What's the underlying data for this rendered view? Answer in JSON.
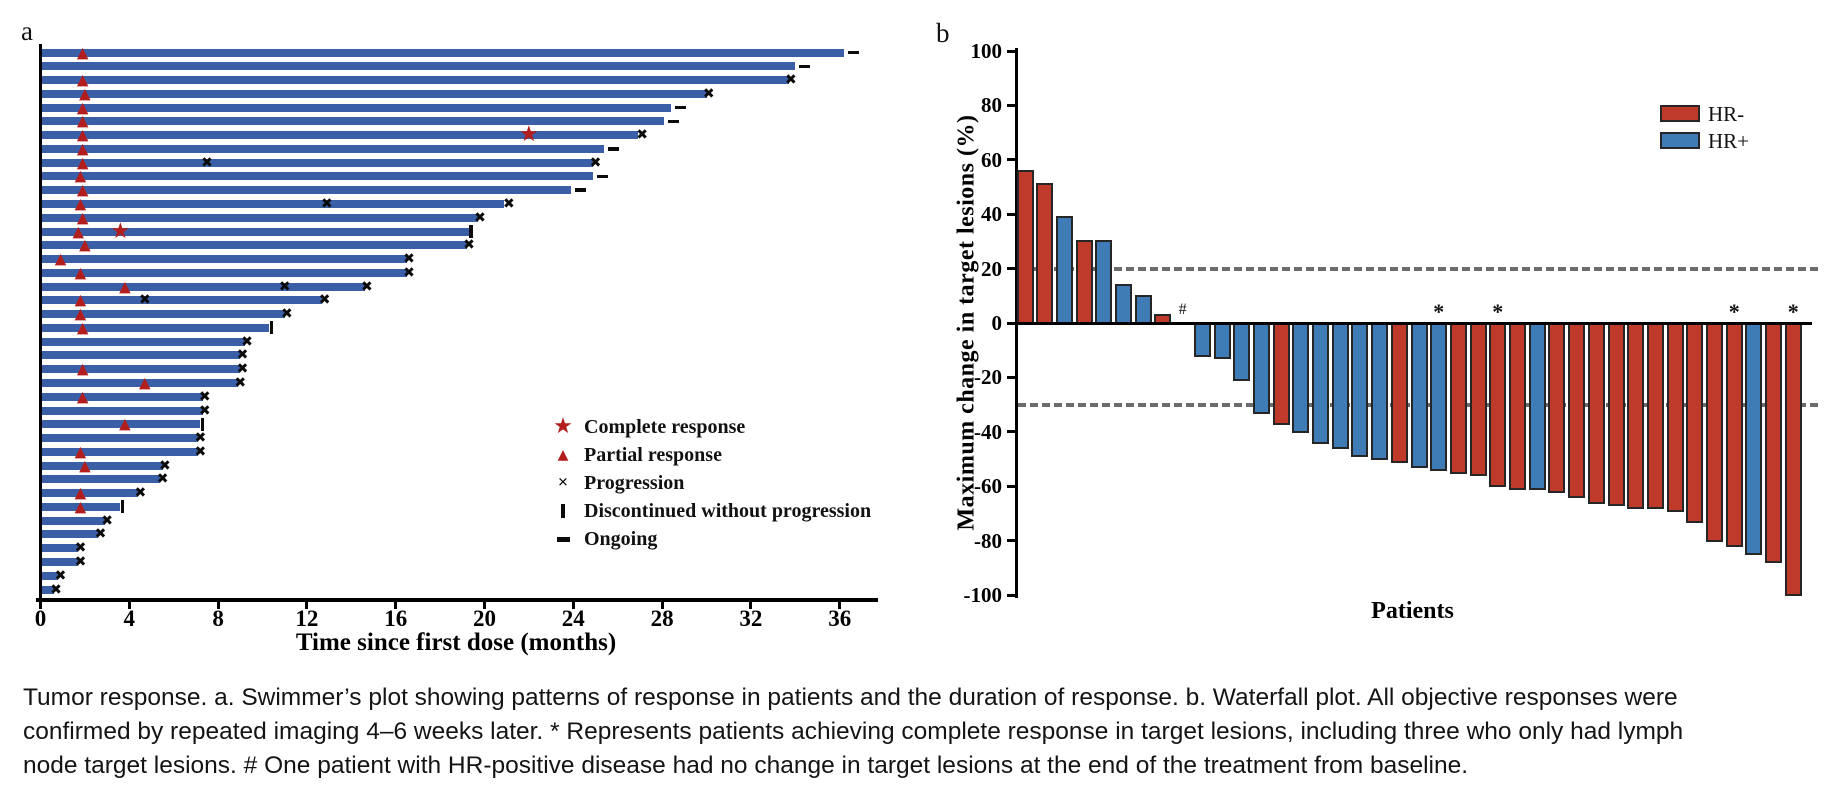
{
  "figure": {
    "panel_a_label": "a",
    "panel_b_label": "b"
  },
  "caption": {
    "lines": [
      "Tumor response. a. Swimmer’s plot showing patterns of response in patients and the duration of response. b. Waterfall plot. All objective responses were",
      "confirmed by repeated imaging 4–6 weeks later. * Represents patients achieving complete response in target lesions, including three who only had lymph",
      "node target lesions. # One patient with HR-positive disease had no change in target lesions at the end of the treatment from baseline."
    ]
  },
  "chart_data": [
    {
      "id": "swimmer_plot",
      "type": "bar",
      "orientation": "horizontal_swimmer",
      "title": "",
      "xlabel": "Time since first dose (months)",
      "ylabel": "",
      "xlim": [
        0,
        37.5
      ],
      "xticks": [
        0,
        4,
        8,
        12,
        16,
        20,
        24,
        28,
        32,
        36
      ],
      "grid": false,
      "bar_color": "#3a5fa7",
      "marker_red": "#b21d1d",
      "marker_black": "#0b0b0b",
      "legend_position": "right-middle",
      "legend": [
        {
          "symbol": "star",
          "label": "Complete response"
        },
        {
          "symbol": "triangle",
          "label": "Partial response"
        },
        {
          "symbol": "x",
          "label": "Progression"
        },
        {
          "symbol": "vbar",
          "label": "Discontinued without progression"
        },
        {
          "symbol": "dash",
          "label": "Ongoing"
        }
      ],
      "patients": [
        {
          "duration_months": 36.2,
          "markers": [
            {
              "type": "triangle",
              "month": 1.9
            },
            {
              "type": "dash",
              "month": 36.6
            }
          ]
        },
        {
          "duration_months": 34.0,
          "markers": [
            {
              "type": "dash",
              "month": 34.4
            }
          ]
        },
        {
          "duration_months": 33.7,
          "markers": [
            {
              "type": "triangle",
              "month": 1.9
            },
            {
              "type": "x",
              "month": 33.8
            }
          ]
        },
        {
          "duration_months": 30.0,
          "markers": [
            {
              "type": "triangle",
              "month": 2.0
            },
            {
              "type": "x",
              "month": 30.1
            }
          ]
        },
        {
          "duration_months": 28.4,
          "markers": [
            {
              "type": "triangle",
              "month": 1.9
            },
            {
              "type": "dash",
              "month": 28.8
            }
          ]
        },
        {
          "duration_months": 28.1,
          "markers": [
            {
              "type": "triangle",
              "month": 1.9
            },
            {
              "type": "dash",
              "month": 28.5
            }
          ]
        },
        {
          "duration_months": 26.9,
          "markers": [
            {
              "type": "triangle",
              "month": 1.9
            },
            {
              "type": "star",
              "month": 22.0
            },
            {
              "type": "x",
              "month": 27.1
            }
          ]
        },
        {
          "duration_months": 25.4,
          "markers": [
            {
              "type": "triangle",
              "month": 1.9
            },
            {
              "type": "dash",
              "month": 25.8
            }
          ]
        },
        {
          "duration_months": 24.9,
          "markers": [
            {
              "type": "triangle",
              "month": 1.9
            },
            {
              "type": "x",
              "month": 7.5
            },
            {
              "type": "x",
              "month": 25.0
            }
          ]
        },
        {
          "duration_months": 24.9,
          "markers": [
            {
              "type": "triangle",
              "month": 1.8
            },
            {
              "type": "dash",
              "month": 25.3
            }
          ]
        },
        {
          "duration_months": 23.9,
          "markers": [
            {
              "type": "triangle",
              "month": 1.9
            },
            {
              "type": "dash",
              "month": 24.3
            }
          ]
        },
        {
          "duration_months": 20.9,
          "markers": [
            {
              "type": "triangle",
              "month": 1.8
            },
            {
              "type": "x",
              "month": 12.9
            },
            {
              "type": "x",
              "month": 21.1
            }
          ]
        },
        {
          "duration_months": 19.7,
          "markers": [
            {
              "type": "triangle",
              "month": 1.9
            },
            {
              "type": "x",
              "month": 19.8
            }
          ]
        },
        {
          "duration_months": 19.3,
          "markers": [
            {
              "type": "triangle",
              "month": 1.7
            },
            {
              "type": "star",
              "month": 3.6
            },
            {
              "type": "vbar",
              "month": 19.4
            }
          ]
        },
        {
          "duration_months": 19.2,
          "markers": [
            {
              "type": "triangle",
              "month": 2.0
            },
            {
              "type": "x",
              "month": 19.3
            }
          ]
        },
        {
          "duration_months": 16.5,
          "markers": [
            {
              "type": "triangle",
              "month": 0.9
            },
            {
              "type": "x",
              "month": 16.6
            }
          ]
        },
        {
          "duration_months": 16.5,
          "markers": [
            {
              "type": "triangle",
              "month": 1.8
            },
            {
              "type": "x",
              "month": 16.6
            }
          ]
        },
        {
          "duration_months": 14.6,
          "markers": [
            {
              "type": "triangle",
              "month": 3.8
            },
            {
              "type": "x",
              "month": 11.0
            },
            {
              "type": "x",
              "month": 14.7
            }
          ]
        },
        {
          "duration_months": 12.7,
          "markers": [
            {
              "type": "triangle",
              "month": 1.8
            },
            {
              "type": "x",
              "month": 4.7
            },
            {
              "type": "x",
              "month": 12.8
            }
          ]
        },
        {
          "duration_months": 11.0,
          "markers": [
            {
              "type": "triangle",
              "month": 1.8
            },
            {
              "type": "x",
              "month": 11.1
            }
          ]
        },
        {
          "duration_months": 10.3,
          "markers": [
            {
              "type": "triangle",
              "month": 1.9
            },
            {
              "type": "vbar",
              "month": 10.4
            }
          ]
        },
        {
          "duration_months": 9.2,
          "markers": [
            {
              "type": "x",
              "month": 9.3
            }
          ]
        },
        {
          "duration_months": 9.0,
          "markers": [
            {
              "type": "x",
              "month": 9.1
            }
          ]
        },
        {
          "duration_months": 9.0,
          "markers": [
            {
              "type": "triangle",
              "month": 1.9
            },
            {
              "type": "x",
              "month": 9.1
            }
          ]
        },
        {
          "duration_months": 8.9,
          "markers": [
            {
              "type": "triangle",
              "month": 4.7
            },
            {
              "type": "x",
              "month": 9.0
            }
          ]
        },
        {
          "duration_months": 7.3,
          "markers": [
            {
              "type": "triangle",
              "month": 1.9
            },
            {
              "type": "x",
              "month": 7.4
            }
          ]
        },
        {
          "duration_months": 7.3,
          "markers": [
            {
              "type": "x",
              "month": 7.4
            }
          ]
        },
        {
          "duration_months": 7.2,
          "markers": [
            {
              "type": "triangle",
              "month": 3.8
            },
            {
              "type": "vbar",
              "month": 7.3
            }
          ]
        },
        {
          "duration_months": 7.1,
          "markers": [
            {
              "type": "x",
              "month": 7.2
            }
          ]
        },
        {
          "duration_months": 7.1,
          "markers": [
            {
              "type": "triangle",
              "month": 1.8
            },
            {
              "type": "x",
              "month": 7.2
            }
          ]
        },
        {
          "duration_months": 5.5,
          "markers": [
            {
              "type": "triangle",
              "month": 2.0
            },
            {
              "type": "x",
              "month": 5.6
            }
          ]
        },
        {
          "duration_months": 5.4,
          "markers": [
            {
              "type": "x",
              "month": 5.5
            }
          ]
        },
        {
          "duration_months": 4.4,
          "markers": [
            {
              "type": "triangle",
              "month": 1.8
            },
            {
              "type": "x",
              "month": 4.5
            }
          ]
        },
        {
          "duration_months": 3.6,
          "markers": [
            {
              "type": "triangle",
              "month": 1.8
            },
            {
              "type": "vbar",
              "month": 3.7
            }
          ]
        },
        {
          "duration_months": 2.9,
          "markers": [
            {
              "type": "x",
              "month": 3.0
            }
          ]
        },
        {
          "duration_months": 2.6,
          "markers": [
            {
              "type": "x",
              "month": 2.7
            }
          ]
        },
        {
          "duration_months": 1.7,
          "markers": [
            {
              "type": "x",
              "month": 1.8
            }
          ]
        },
        {
          "duration_months": 1.7,
          "markers": [
            {
              "type": "x",
              "month": 1.8
            }
          ]
        },
        {
          "duration_months": 0.8,
          "markers": [
            {
              "type": "x",
              "month": 0.9
            }
          ]
        },
        {
          "duration_months": 0.6,
          "markers": [
            {
              "type": "x",
              "month": 0.7
            }
          ]
        }
      ]
    },
    {
      "id": "waterfall_plot",
      "type": "bar",
      "title": "",
      "xlabel": "Patients",
      "ylabel": "Maximum change in target lesions (%)",
      "ylim": [
        -100,
        100
      ],
      "yticks": [
        100,
        80,
        60,
        40,
        20,
        0,
        -20,
        -40,
        -60,
        -80,
        -100
      ],
      "reference_lines": [
        20,
        -30
      ],
      "grid": false,
      "legend_position": "top-right",
      "legend": [
        {
          "label": "HR-",
          "color": "#c03a2c"
        },
        {
          "label": "HR+",
          "color": "#3f7cb6"
        }
      ],
      "groups": {
        "HR-": "#c03a2c",
        "HR+": "#3f7cb6"
      },
      "bars": [
        {
          "value": 56,
          "group": "HR-"
        },
        {
          "value": 51,
          "group": "HR-"
        },
        {
          "value": 39,
          "group": "HR+"
        },
        {
          "value": 30,
          "group": "HR-"
        },
        {
          "value": 30,
          "group": "HR+"
        },
        {
          "value": 14,
          "group": "HR+"
        },
        {
          "value": 10,
          "group": "HR+"
        },
        {
          "value": 3,
          "group": "HR-"
        },
        {
          "value": 0,
          "group": "HR+",
          "annotation": "#"
        },
        {
          "value": -12,
          "group": "HR+"
        },
        {
          "value": -13,
          "group": "HR+"
        },
        {
          "value": -21,
          "group": "HR+"
        },
        {
          "value": -33,
          "group": "HR+"
        },
        {
          "value": -37,
          "group": "HR-"
        },
        {
          "value": -40,
          "group": "HR+"
        },
        {
          "value": -44,
          "group": "HR+"
        },
        {
          "value": -46,
          "group": "HR+"
        },
        {
          "value": -49,
          "group": "HR+"
        },
        {
          "value": -50,
          "group": "HR+"
        },
        {
          "value": -51,
          "group": "HR-"
        },
        {
          "value": -53,
          "group": "HR+"
        },
        {
          "value": -54,
          "group": "HR+",
          "annotation": "*"
        },
        {
          "value": -55,
          "group": "HR-"
        },
        {
          "value": -56,
          "group": "HR-"
        },
        {
          "value": -60,
          "group": "HR-",
          "annotation": "*"
        },
        {
          "value": -61,
          "group": "HR-"
        },
        {
          "value": -61,
          "group": "HR+"
        },
        {
          "value": -62,
          "group": "HR-"
        },
        {
          "value": -64,
          "group": "HR-"
        },
        {
          "value": -66,
          "group": "HR-"
        },
        {
          "value": -67,
          "group": "HR-"
        },
        {
          "value": -68,
          "group": "HR-"
        },
        {
          "value": -68,
          "group": "HR-"
        },
        {
          "value": -69,
          "group": "HR-"
        },
        {
          "value": -73,
          "group": "HR-"
        },
        {
          "value": -80,
          "group": "HR-"
        },
        {
          "value": -82,
          "group": "HR-",
          "annotation": "*"
        },
        {
          "value": -85,
          "group": "HR+"
        },
        {
          "value": -88,
          "group": "HR-"
        },
        {
          "value": -100,
          "group": "HR-",
          "annotation": "*"
        }
      ]
    }
  ]
}
